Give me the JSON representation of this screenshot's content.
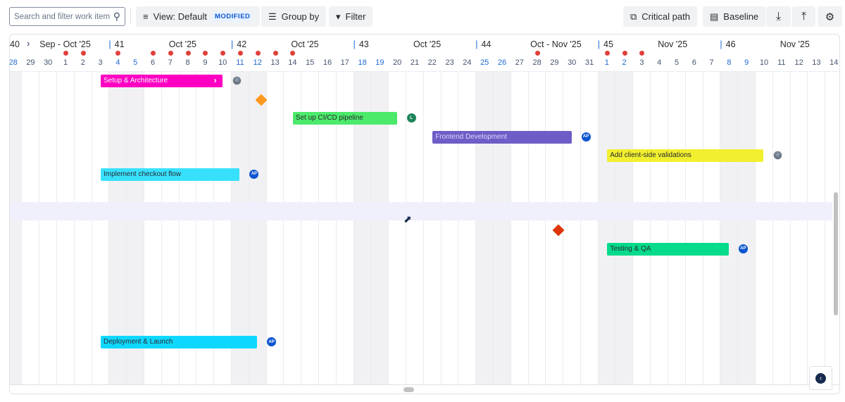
{
  "toolbar": {
    "search_placeholder": "Search and filter work item",
    "view_label": "View: Default",
    "view_badge": "MODIFIED",
    "group_by": "Group by",
    "filter": "Filter",
    "critical_path": "Critical path",
    "baseline": "Baseline"
  },
  "timeline": {
    "weeks": [
      {
        "label": "40",
        "day": 0
      },
      {
        "label": "41",
        "day": 6
      },
      {
        "label": "42",
        "day": 13
      },
      {
        "label": "43",
        "day": 20
      },
      {
        "label": "44",
        "day": 27
      },
      {
        "label": "45",
        "day": 34
      },
      {
        "label": "46",
        "day": 41
      }
    ],
    "months": [
      {
        "label": "Sep - Oct '25",
        "day": 1.6
      },
      {
        "label": "Oct '25",
        "day": 9
      },
      {
        "label": "Oct '25",
        "day": 16
      },
      {
        "label": "Oct '25",
        "day": 23
      },
      {
        "label": "Oct - Nov '25",
        "day": 29.7
      },
      {
        "label": "Nov '25",
        "day": 37
      },
      {
        "label": "Nov '25",
        "day": 44
      }
    ],
    "days": [
      "28",
      "29",
      "30",
      "1",
      "2",
      "3",
      "4",
      "5",
      "6",
      "7",
      "8",
      "9",
      "10",
      "11",
      "12",
      "13",
      "14",
      "15",
      "16",
      "17",
      "18",
      "19",
      "20",
      "21",
      "22",
      "23",
      "24",
      "25",
      "26",
      "27",
      "28",
      "29",
      "30",
      "31",
      "1",
      "2",
      "3",
      "4",
      "5",
      "6",
      "7",
      "8",
      "9",
      "10",
      "11",
      "12",
      "13",
      "14"
    ],
    "weekend_days": [
      0,
      6,
      7,
      13,
      14,
      20,
      21,
      27,
      28,
      34,
      35,
      41,
      42
    ],
    "marker_days": [
      3,
      4,
      6,
      8,
      9,
      10,
      11,
      12,
      13,
      14,
      15,
      16,
      30,
      34,
      35,
      36
    ]
  },
  "tasks": [
    {
      "name": "Setup & Architecture",
      "color": "#ff00c3",
      "text": "#ffffff",
      "start": 5.5,
      "end": 12.5,
      "row": 0,
      "assignee": "photo",
      "has_children": true
    },
    {
      "name": "Set up CI/CD pipeline",
      "color": "#4bea6b",
      "text": "#292a2e",
      "start": 16.5,
      "end": 22.5,
      "row": 2,
      "assignee": "L",
      "assignee_color": "#1f845a"
    },
    {
      "name": "Frontend Development",
      "color": "#6e5dc6",
      "text": "#dfd8fd",
      "start": 24.5,
      "end": 32.5,
      "row": 3,
      "assignee": "AP",
      "assignee_color": "#0c55cf"
    },
    {
      "name": "Add client-side validations",
      "color": "#f1f02f",
      "text": "#292a2e",
      "start": 34.5,
      "end": 43.5,
      "row": 4,
      "assignee": "photo"
    },
    {
      "name": "Implement checkout flow",
      "color": "#37e1fd",
      "text": "#292a2e",
      "start": 5.5,
      "end": 13.5,
      "row": 5,
      "assignee": "AP",
      "assignee_color": "#0c55cf"
    },
    {
      "name": "Testing & QA",
      "color": "#05db8b",
      "text": "#292a2e",
      "start": 34.5,
      "end": 41.5,
      "row": 9,
      "assignee": "AP",
      "assignee_color": "#0c55cf"
    },
    {
      "name": "Deployment & Launch",
      "color": "#0fd8ff",
      "text": "#292a2e",
      "start": 5.5,
      "end": 14.5,
      "row": 14,
      "assignee": "AP",
      "assignee_color": "#0c55cf"
    }
  ],
  "milestones": [
    {
      "day": 14.7,
      "row": 1,
      "color": "#ff991f"
    },
    {
      "day": 31.7,
      "row": 8,
      "color": "#de350b"
    }
  ]
}
